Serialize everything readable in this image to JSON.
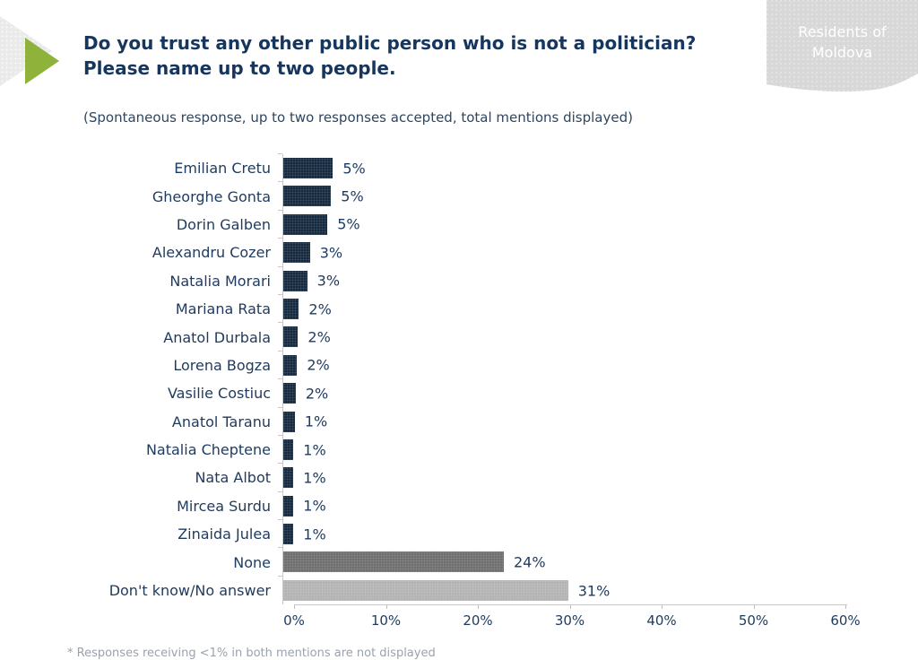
{
  "header": {
    "title_line1": "Do you trust any other public person who is not a politician?",
    "title_line2": "Please name up to two people.",
    "subtitle": "(Spontaneous response, up to two responses accepted, total mentions displayed)",
    "corner_tag": "Residents of Moldova"
  },
  "footer": {
    "note": "* Responses receiving <1% in both mentions are not displayed"
  },
  "colors": {
    "navy_bar": "#16293f",
    "none_bar": "#6f6f6f",
    "dk_bar": "#b3b3b3",
    "accent_green": "#8fb23b",
    "corner_gray": "#d8d8d8",
    "axis_gray": "#c9c9c9",
    "text_navy": "#1e3a5f",
    "title_navy": "#17365d",
    "footnote_gray": "#9aa2ae"
  },
  "chart_data": {
    "type": "bar",
    "orientation": "horizontal",
    "title": "Do you trust any other public person who is not a politician? Please name up to two people.",
    "categories": [
      "Emilian Cretu",
      "Gheorghe Gonta",
      "Dorin Galben",
      "Alexandru Cozer",
      "Natalia Morari",
      "Mariana Rata",
      "Anatol Durbala",
      "Lorena Bogza",
      "Vasilie Costiuc",
      "Anatol Taranu",
      "Natalia Cheptene",
      "Nata Albot",
      "Mircea Surdu",
      "Zinaida Julea",
      "None",
      "Don't know/No answer"
    ],
    "values": [
      5,
      5,
      5,
      3,
      3,
      2,
      2,
      2,
      2,
      1,
      1,
      1,
      1,
      1,
      24,
      31
    ],
    "precise_values": [
      5.4,
      5.2,
      4.8,
      2.9,
      2.6,
      1.7,
      1.6,
      1.5,
      1.35,
      1.25,
      1.1,
      1.1,
      1.1,
      1.1,
      24,
      31
    ],
    "labels": [
      "5%",
      "5%",
      "5%",
      "3%",
      "3%",
      "2%",
      "2%",
      "2%",
      "2%",
      "1%",
      "1%",
      "1%",
      "1%",
      "1%",
      "24%",
      "31%"
    ],
    "bar_colors": [
      "#16293f",
      "#16293f",
      "#16293f",
      "#16293f",
      "#16293f",
      "#16293f",
      "#16293f",
      "#16293f",
      "#16293f",
      "#16293f",
      "#16293f",
      "#16293f",
      "#16293f",
      "#16293f",
      "#6f6f6f",
      "#b3b3b3"
    ],
    "axis": {
      "ticks": [
        "0%",
        "10%",
        "20%",
        "30%",
        "40%",
        "50%",
        "60%"
      ],
      "min": 0,
      "max": 60,
      "grid": false,
      "legend": "none"
    },
    "xlabel": "",
    "ylabel": ""
  }
}
